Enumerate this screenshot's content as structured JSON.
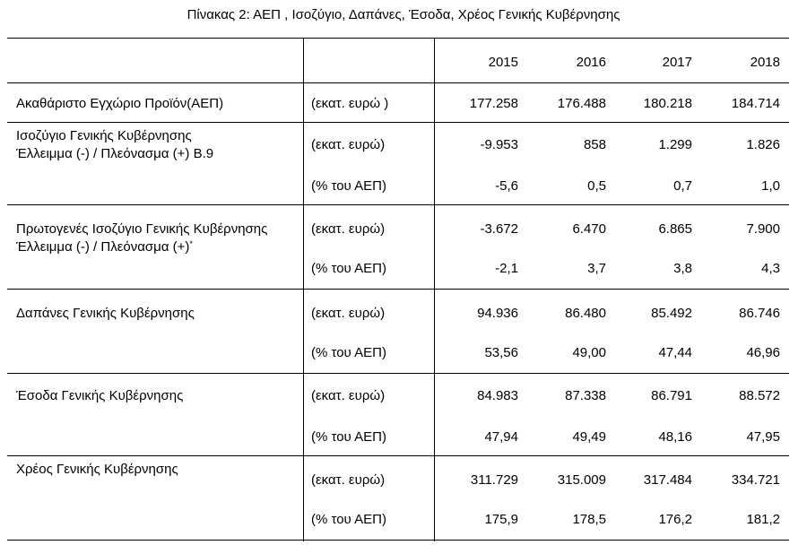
{
  "title": "Πίνακας 2: ΑΕΠ , Ισοζύγιο, Δαπάνες, Έσοδα, Χρέος Γενικής Κυβέρνησης",
  "years": [
    "2015",
    "2016",
    "2017",
    "2018"
  ],
  "rows": [
    {
      "label": [
        "Ακαθάριστο Εγχώριο Προϊόν(ΑΕΠ)"
      ],
      "lines": [
        {
          "unit": "(εκατ.  ευρώ )",
          "values": [
            "177.258",
            "176.488",
            "180.218",
            "184.714"
          ]
        }
      ]
    },
    {
      "label": [
        "Ισοζύγιο Γενικής Κυβέρνησης",
        "Έλλειμμα  (-) / Πλεόνασμα (+) Β.9"
      ],
      "lines": [
        {
          "unit": "(εκατ.  ευρώ)",
          "values": [
            "-9.953",
            "858",
            "1.299",
            "1.826"
          ]
        },
        {
          "unit": "(% του ΑΕΠ)",
          "values": [
            "-5,6",
            "0,5",
            "0,7",
            "1,0"
          ]
        }
      ]
    },
    {
      "label": [
        "Πρωτογενές Ισοζύγιο  Γενικής Κυβέρνησης",
        "Έλλειμμα (-) / Πλεόνασμα (+)"
      ],
      "footnote_mark": "*",
      "lines": [
        {
          "unit": "(εκατ.  ευρώ)",
          "values": [
            "-3.672",
            "6.470",
            "6.865",
            "7.900"
          ]
        },
        {
          "unit": "(% του ΑΕΠ)",
          "values": [
            "-2,1",
            "3,7",
            "3,8",
            "4,3"
          ]
        }
      ]
    },
    {
      "label": [
        "Δαπάνες Γενικής Κυβέρνησης"
      ],
      "lines": [
        {
          "unit": "(εκατ.  ευρώ)",
          "values": [
            "94.936",
            "86.480",
            "85.492",
            "86.746"
          ]
        },
        {
          "unit": "(% του ΑΕΠ)",
          "values": [
            "53,56",
            "49,00",
            "47,44",
            "46,96"
          ]
        }
      ]
    },
    {
      "label": [
        "Έσοδα Γενικής Κυβέρνησης"
      ],
      "lines": [
        {
          "unit": "(εκατ.  ευρώ)",
          "values": [
            "84.983",
            "87.338",
            "86.791",
            "88.572"
          ]
        },
        {
          "unit": "(% του ΑΕΠ)",
          "values": [
            "47,94",
            "49,49",
            "48,16",
            "47,95"
          ]
        }
      ]
    },
    {
      "label": [
        "Χρέος Γενικής Κυβέρνησης"
      ],
      "lines": [
        {
          "unit": "(εκατ.  ευρώ)",
          "values": [
            "311.729",
            "315.009",
            "317.484",
            "334.721"
          ]
        },
        {
          "unit": "(% του ΑΕΠ)",
          "values": [
            "175,9",
            "178,5",
            "176,2",
            "181,2"
          ]
        }
      ]
    }
  ]
}
